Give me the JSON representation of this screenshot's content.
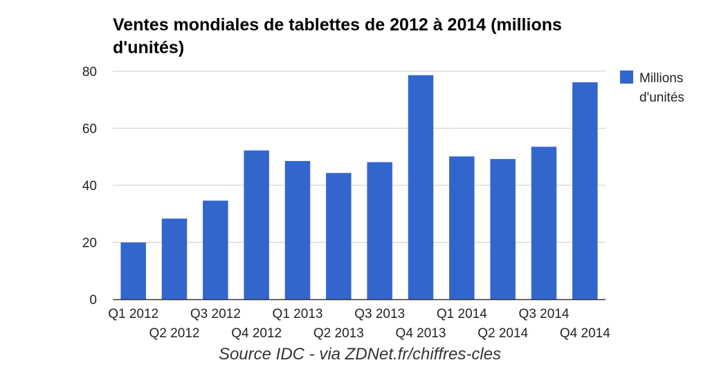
{
  "chart_data": {
    "type": "bar",
    "title": "Ventes mondiales de tablettes de 2012 à 2014 (millions d'unités)",
    "categories": [
      "Q1 2012",
      "Q2 2012",
      "Q3 2012",
      "Q4 2012",
      "Q1 2013",
      "Q2 2013",
      "Q3 2013",
      "Q4 2013",
      "Q1 2014",
      "Q2 2014",
      "Q3 2014",
      "Q4 2014"
    ],
    "series": [
      {
        "name": "Millions d'unités",
        "values": [
          19.9,
          28.3,
          34.6,
          52.2,
          48.5,
          44.3,
          48.1,
          78.6,
          50.1,
          49.2,
          53.5,
          76.1
        ],
        "color": "#3366cc"
      }
    ],
    "ylim": [
      0,
      80
    ],
    "yticks": [
      0,
      20,
      40,
      60,
      80
    ],
    "grid": true,
    "legend": "right",
    "xlabel": "",
    "ylabel": ""
  },
  "source_note": "Source IDC - via ZDNet.fr/chiffres-cles"
}
